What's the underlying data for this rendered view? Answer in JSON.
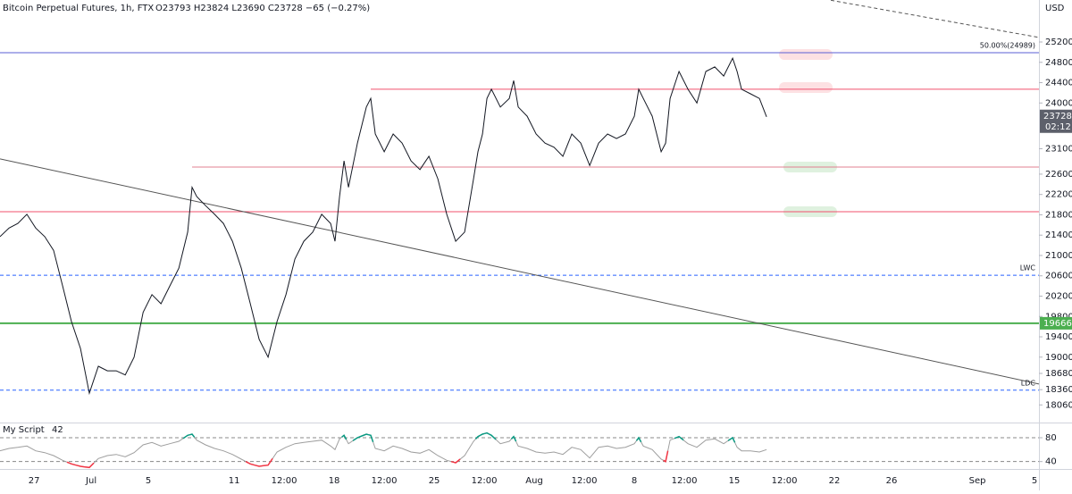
{
  "chart_data": [
    {
      "type": "line",
      "title": "Bitcoin Perpetual Futures, 1h, FTX",
      "subtitle": "O23793 H23824 L23690 C23728 −65 (−0.27%)",
      "currency": "USD",
      "countdown": "02:12",
      "color": "#131722",
      "grid": false,
      "xlim": [
        -6.38,
        66.31
      ],
      "xticks": [
        {
          "value": -4,
          "label": "27"
        },
        {
          "value": 0,
          "label": "Jul"
        },
        {
          "value": 4,
          "label": "5"
        },
        {
          "value": 10,
          "label": "11"
        },
        {
          "value": 13.5,
          "label": "12:00"
        },
        {
          "value": 17,
          "label": "18"
        },
        {
          "value": 20.5,
          "label": "12:00"
        },
        {
          "value": 24,
          "label": "25"
        },
        {
          "value": 27.5,
          "label": "12:00"
        },
        {
          "value": 31,
          "label": "Aug"
        },
        {
          "value": 34.5,
          "label": "12:00"
        },
        {
          "value": 38,
          "label": "8"
        },
        {
          "value": 41.5,
          "label": "12:00"
        },
        {
          "value": 45,
          "label": "15"
        },
        {
          "value": 48.5,
          "label": "12:00"
        },
        {
          "value": 52,
          "label": "22"
        },
        {
          "value": 56,
          "label": "26"
        },
        {
          "value": 62,
          "label": "Sep"
        },
        {
          "value": 66,
          "label": "5"
        }
      ],
      "ylim": [
        17766,
        26026
      ],
      "yticks": [
        25200,
        24800,
        24400,
        24000,
        23100,
        22600,
        22200,
        21800,
        21400,
        21000,
        20600,
        20200,
        19800,
        19400,
        19000,
        18680,
        18360,
        18060
      ],
      "x": [
        -6.38,
        -5.75,
        -5.13,
        -4.5,
        -3.88,
        -3.25,
        -2.63,
        -2,
        -1.38,
        -0.75,
        -0.13,
        0.5,
        1.13,
        1.75,
        2.38,
        3,
        3.63,
        4.25,
        4.88,
        5.5,
        6.13,
        6.75,
        7.06,
        7.38,
        8,
        8.63,
        9.25,
        9.88,
        10.5,
        11.13,
        11.75,
        12.38,
        13,
        13.63,
        14.25,
        14.88,
        15.5,
        16.13,
        16.75,
        17.06,
        17.38,
        17.69,
        18,
        18.63,
        19.25,
        19.56,
        19.88,
        20.5,
        21.13,
        21.75,
        22.38,
        23,
        23.63,
        24.25,
        24.88,
        25.5,
        26.13,
        26.75,
        27.06,
        27.38,
        27.69,
        28,
        28.63,
        29.25,
        29.56,
        29.88,
        30.5,
        31.13,
        31.75,
        32.38,
        33,
        33.63,
        34.25,
        34.88,
        35.5,
        36.13,
        36.75,
        37.38,
        38,
        38.31,
        38.63,
        39.25,
        39.88,
        40.19,
        40.5,
        41.13,
        41.75,
        42.38,
        43,
        43.63,
        44.25,
        44.88,
        45.19,
        45.5,
        46.13,
        46.75,
        47.25
      ],
      "values": [
        21370,
        21540,
        21630,
        21810,
        21540,
        21370,
        21100,
        20400,
        19700,
        19170,
        18290,
        18820,
        18730,
        18730,
        18650,
        19000,
        19880,
        20230,
        20050,
        20400,
        20750,
        21460,
        22340,
        22160,
        21980,
        21810,
        21630,
        21280,
        20750,
        20050,
        19350,
        19000,
        19700,
        20230,
        20930,
        21280,
        21460,
        21810,
        21630,
        21280,
        22160,
        22860,
        22340,
        23210,
        23920,
        24090,
        23390,
        23040,
        23390,
        23210,
        22860,
        22690,
        22950,
        22510,
        21810,
        21280,
        21460,
        22510,
        23040,
        23390,
        24090,
        24270,
        23920,
        24090,
        24440,
        23920,
        23740,
        23390,
        23210,
        23130,
        22950,
        23390,
        23210,
        22770,
        23210,
        23390,
        23300,
        23390,
        23740,
        24270,
        24090,
        23740,
        23040,
        23210,
        24090,
        24620,
        24270,
        24000,
        24620,
        24710,
        24530,
        24880,
        24620,
        24270,
        24180,
        24090,
        23728
      ],
      "levels": [
        {
          "value": 24989,
          "color": "#5b5fd6",
          "label": "50.00%(24989)"
        },
        {
          "value": 24270,
          "color": "#f0506e",
          "from": 19.56
        },
        {
          "value": 22740,
          "color": "#e08090",
          "from": 7.06
        },
        {
          "value": 21860,
          "color": "#f0506e"
        },
        {
          "value": 20610,
          "color": "#2962ff",
          "dash": true,
          "label": "LWC"
        },
        {
          "value": 19666,
          "color": "#4caf50",
          "width": 2,
          "axis_label": true
        },
        {
          "value": 18350,
          "color": "#2962ff",
          "dash": true,
          "label": "LDC"
        }
      ],
      "lines": [
        {
          "x": [
            -6.38,
            66.31
          ],
          "values": [
            22900,
            18470
          ],
          "color": "#555"
        },
        {
          "x": [
            51.75,
            66.31
          ],
          "values": [
            26020,
            25290
          ],
          "color": "#555",
          "dash": true
        }
      ]
    },
    {
      "type": "line",
      "title": "My Script",
      "param": 42,
      "color": "#9e9e9e",
      "above_color": "#089981",
      "below_color": "#f23645",
      "xlim": [
        -6.38,
        66.31
      ],
      "ylim": [
        29,
        101
      ],
      "yticks": [
        80,
        40
      ],
      "x": [
        -6.38,
        -5.75,
        -5.13,
        -4.5,
        -3.88,
        -3.25,
        -2.63,
        -2,
        -1.38,
        -0.75,
        -0.13,
        0.5,
        1.13,
        1.75,
        2.38,
        3,
        3.63,
        4.25,
        4.88,
        5.5,
        6.13,
        6.75,
        7.06,
        7.38,
        8,
        8.63,
        9.25,
        9.88,
        10.5,
        11.13,
        11.75,
        12.38,
        13,
        13.63,
        14.25,
        14.88,
        15.5,
        16.13,
        16.75,
        17.06,
        17.38,
        17.69,
        18,
        18.63,
        19.25,
        19.56,
        19.88,
        20.5,
        21.13,
        21.75,
        22.38,
        23,
        23.63,
        24.25,
        24.88,
        25.5,
        26.13,
        26.75,
        27.06,
        27.38,
        27.69,
        28,
        28.63,
        29.25,
        29.56,
        29.88,
        30.5,
        31.13,
        31.75,
        32.38,
        33,
        33.63,
        34.25,
        34.88,
        35.5,
        36.13,
        36.75,
        37.38,
        38,
        38.31,
        38.63,
        39.25,
        39.88,
        40.19,
        40.5,
        41.13,
        41.75,
        42.38,
        43,
        43.63,
        44.25,
        44.88,
        45.19,
        45.5,
        46.13,
        46.75,
        47.25
      ],
      "values": [
        58,
        62,
        64,
        66,
        58,
        55,
        50,
        42,
        36,
        32,
        30,
        45,
        50,
        52,
        48,
        55,
        68,
        72,
        66,
        70,
        74,
        84,
        86,
        76,
        68,
        62,
        58,
        52,
        44,
        36,
        32,
        34,
        56,
        64,
        70,
        72,
        74,
        76,
        66,
        60,
        78,
        84,
        70,
        80,
        86,
        84,
        62,
        58,
        66,
        62,
        56,
        54,
        60,
        50,
        42,
        38,
        50,
        74,
        82,
        86,
        88,
        84,
        70,
        74,
        82,
        66,
        62,
        56,
        54,
        56,
        52,
        64,
        60,
        46,
        64,
        66,
        62,
        64,
        70,
        80,
        66,
        60,
        44,
        40,
        76,
        82,
        70,
        64,
        76,
        78,
        70,
        80,
        64,
        58,
        58,
        56,
        60
      ],
      "levels": [
        {
          "value": 80,
          "color": "#888",
          "dash": true
        },
        {
          "value": 40,
          "color": "#888",
          "dash": true
        }
      ]
    }
  ]
}
